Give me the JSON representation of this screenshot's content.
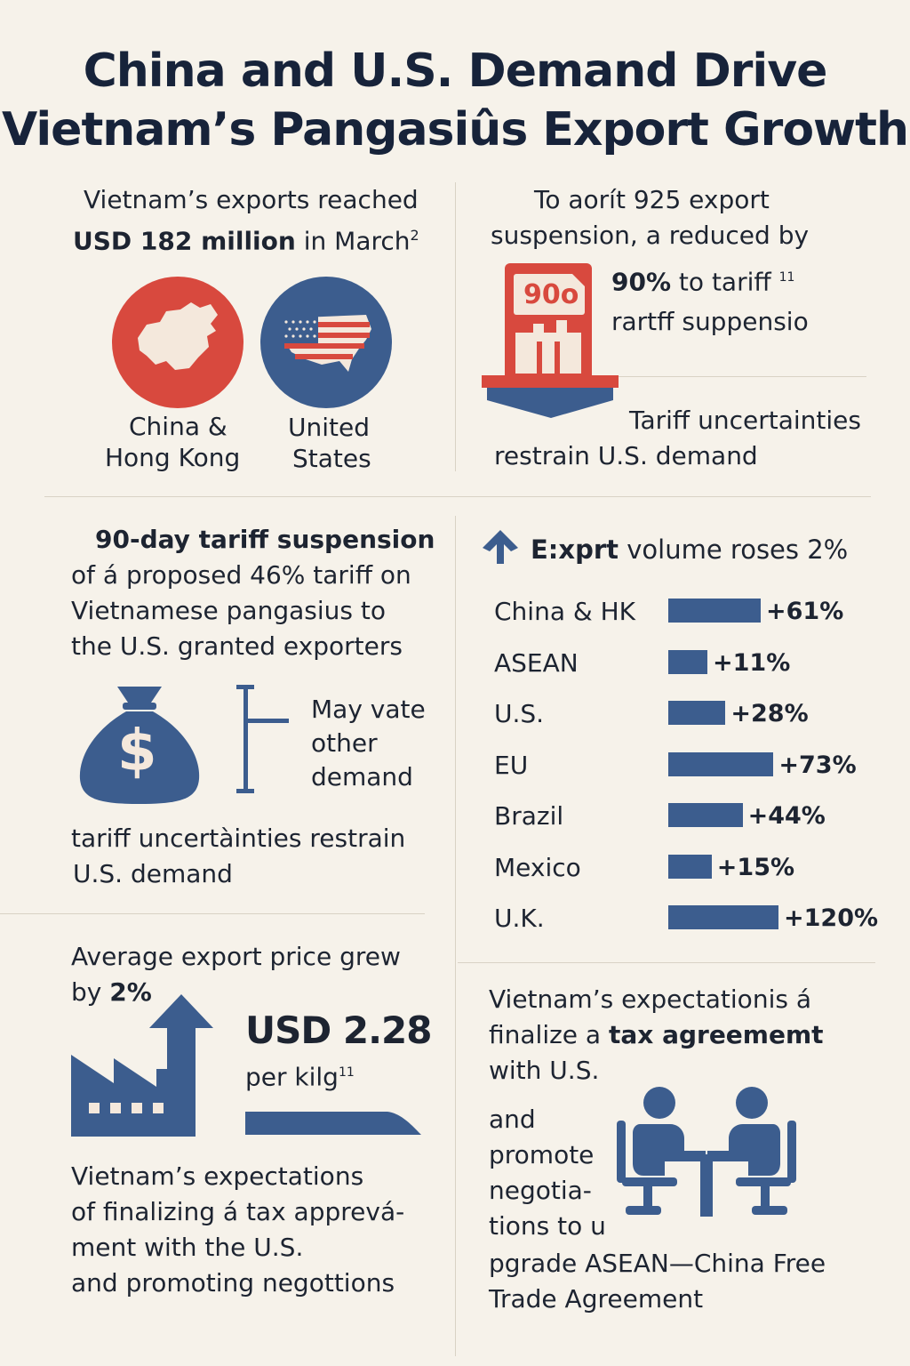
{
  "title": {
    "line1": "China and U.S. Demand Drive",
    "line2": "Vietnam’s Pangasiûs Export Growth"
  },
  "panel1": {
    "line1": "Vietnam’s exports reached",
    "bold": "USD 182 million",
    "rest": " in March",
    "sup": "2",
    "china_label_1": "China &",
    "china_label_2": "Hong Kong",
    "us_label_1": "United",
    "us_label_2": "States"
  },
  "panel2": {
    "line1": "To aorít 925 export",
    "line2": "suspension, a reduced by",
    "badge": "90o",
    "pct_bold": "90%",
    "pct_rest": " to tariff",
    "pct_sup": "11",
    "line4": "rartff suppensio",
    "note1": "Tariff uncertainties",
    "note2": "restrain U.S. demand"
  },
  "panel3": {
    "line1": "90-day tariff suspension",
    "line2": "of á proposed 46% tariff on",
    "line3": "Vietnamese pangasius to",
    "line4": "the U.S. granted exporters",
    "side1": "May vate",
    "side2": "other",
    "side3": "demand",
    "bottom1": "tariff uncertàinties restrain",
    "bottom2": "U.S. demand",
    "dollar": "$"
  },
  "panel4": {
    "bold": "E:xprt",
    "rest": " volume roses 2%"
  },
  "panel5": {
    "line1": "Average export price grew",
    "line2_pre": "by ",
    "line2_bold": "2%",
    "price": "USD 2.28",
    "unit": "per kilg",
    "unit_sup": "11",
    "bottom1": "Vietnam’s expectations",
    "bottom2": "of finalizing á tax apprevá-",
    "bottom3": "ment with the U.S.",
    "bottom4": "and promoting negottions"
  },
  "panel6": {
    "line1": "Vietnam’s expectationis á",
    "line2_pre": "finalize a ",
    "line2_bold": "tax agreememt",
    "line3": "with U.S.",
    "side1": "and",
    "side2": "promote",
    "side3": "negotia-",
    "side4": "tions to u",
    "bottom1": "pgrade ASEAN—China Free",
    "bottom2": "Trade Agreement"
  },
  "colors": {
    "red": "#d8493e",
    "blue": "#3c5d8e",
    "background": "#f6f2ea"
  },
  "chart_data": {
    "type": "bar",
    "orientation": "horizontal",
    "categories": [
      "China & HK",
      "ASEAN",
      "U.S.",
      "EU",
      "Brazil",
      "Mexico",
      "U.K."
    ],
    "values": [
      61,
      11,
      28,
      73,
      44,
      15,
      120
    ],
    "labels": [
      "+61%",
      "+11%",
      "+28%",
      "+73%",
      "+44%",
      "+15%",
      "+120%"
    ],
    "title": "",
    "xlabel": "",
    "ylabel": ""
  }
}
